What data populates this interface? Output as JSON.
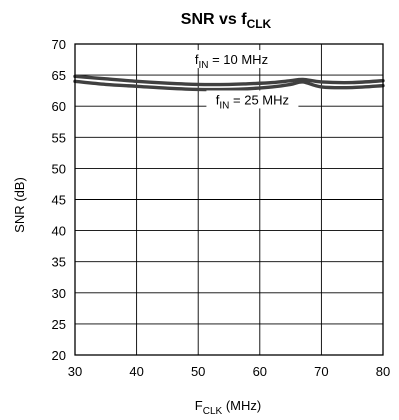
{
  "chart_data": {
    "type": "line",
    "title": {
      "main": "SNR vs f",
      "sub": "CLK"
    },
    "xlabel": {
      "main": "F",
      "sub": "CLK",
      "suffix": " (MHz)"
    },
    "ylabel": "SNR (dB)",
    "xlim": [
      30,
      80
    ],
    "ylim": [
      20,
      70
    ],
    "x_ticks": [
      30,
      40,
      50,
      60,
      70,
      80
    ],
    "y_ticks": [
      20,
      25,
      30,
      35,
      40,
      45,
      50,
      55,
      60,
      65,
      70
    ],
    "grid": true,
    "legend": "none",
    "series": [
      {
        "x": [
          30,
          35,
          40,
          45,
          50,
          55,
          58,
          62,
          65,
          67,
          70,
          75,
          80
        ],
        "y": [
          64.8,
          64.4,
          64.0,
          63.7,
          63.5,
          63.5,
          63.6,
          63.8,
          64.1,
          64.3,
          63.9,
          63.8,
          64.1
        ]
      },
      {
        "x": [
          30,
          35,
          40,
          45,
          50,
          55,
          58,
          62,
          65,
          67,
          70,
          75,
          80
        ],
        "y": [
          64.0,
          63.5,
          63.2,
          62.9,
          62.7,
          62.7,
          62.8,
          63.1,
          63.5,
          63.9,
          63.1,
          63.0,
          63.3
        ]
      }
    ],
    "annotations": [
      {
        "pre": "f",
        "sub": "IN",
        "post": " = 10 MHz",
        "x": 55.4,
        "y": 67.1
      },
      {
        "pre": "f",
        "sub": "IN",
        "post": " = 25 MHz",
        "x": 58.8,
        "y": 60.6
      }
    ],
    "colors": {
      "line": "#404040",
      "grid": "#000000",
      "frame": "#000000"
    }
  }
}
